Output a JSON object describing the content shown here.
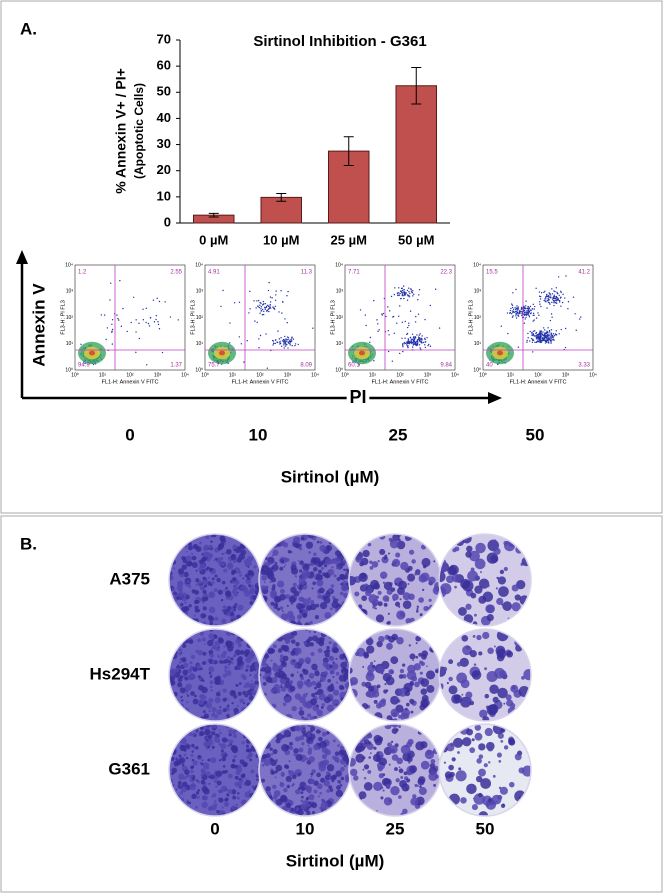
{
  "panel_a": {
    "label": "A.",
    "flow": {
      "x_axis_label": "FL1-H: Annexin V FITC",
      "y_axis_label": "FL3-H: PI FL3",
      "tick_labels": [
        "10⁰",
        "10¹",
        "10²",
        "10³",
        "10⁴"
      ],
      "plots": [
        {
          "ul": "1.2",
          "ur": "2.55",
          "ll": "94.9",
          "lr": "1.37"
        },
        {
          "ul": "4.91",
          "ur": "11.3",
          "ll": "75.7",
          "lr": "8.09"
        },
        {
          "ul": "7.71",
          "ur": "22.3",
          "ll": "60.1",
          "lr": "9.84"
        },
        {
          "ul": "15.5",
          "ur": "41.2",
          "ll": "40",
          "lr": "3.33"
        }
      ]
    },
    "vertical_arrow_label": "Annexin V",
    "horizontal_arrow_label": "PI",
    "doses": [
      "0",
      "10",
      "25",
      "50"
    ],
    "dose_axis_label": "Sirtinol (µM)"
  },
  "chart_data": {
    "type": "bar",
    "title": "Sirtinol Inhibition - G361",
    "y_label": "% Annexin V+ / PI+",
    "y_sublabel": "(Apoptotic Cells)",
    "categories": [
      "0 µM",
      "10 µM",
      "25 µM",
      "50 µM"
    ],
    "values": [
      3,
      9.8,
      27.5,
      52.5
    ],
    "errors": [
      0.7,
      1.5,
      5.5,
      7
    ],
    "color": "#c0504d",
    "ylim": [
      0,
      70
    ],
    "yticks": [
      0,
      10,
      20,
      30,
      40,
      50,
      60,
      70
    ]
  },
  "panel_b": {
    "label": "B.",
    "rows": [
      "A375",
      "Hs294T",
      "G361"
    ],
    "doses": [
      "0",
      "10",
      "25",
      "50"
    ],
    "dose_axis_label": "Sirtinol (µM)"
  }
}
